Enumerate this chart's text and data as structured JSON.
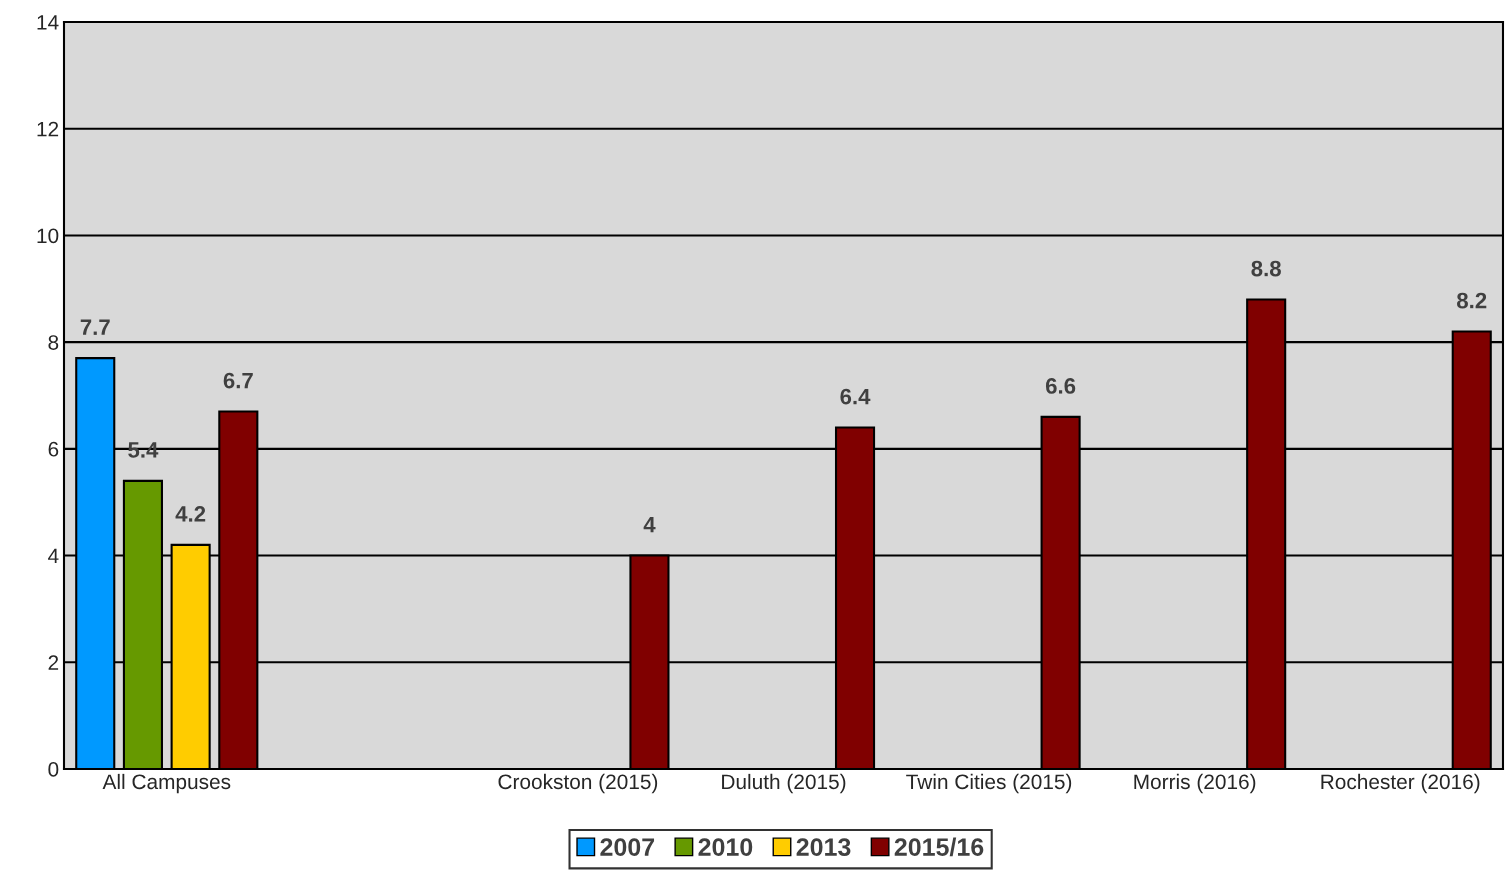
{
  "chart_data": {
    "type": "bar",
    "categories": [
      "All Campuses",
      null,
      "Crookston (2015)",
      "Duluth (2015)",
      "Twin Cities (2015)",
      "Morris (2016)",
      "Rochester (2016)"
    ],
    "series": [
      {
        "name": "2007",
        "color": "#0099ff",
        "values": [
          7.7,
          null,
          null,
          null,
          null,
          null,
          null
        ]
      },
      {
        "name": "2010",
        "color": "#669900",
        "values": [
          5.4,
          null,
          null,
          null,
          null,
          null,
          null
        ]
      },
      {
        "name": "2013",
        "color": "#ffcc00",
        "values": [
          4.2,
          null,
          null,
          null,
          null,
          null,
          null
        ]
      },
      {
        "name": "2015/16",
        "color": "#800000",
        "values": [
          6.7,
          null,
          4,
          6.4,
          6.6,
          8.8,
          8.2
        ]
      }
    ],
    "ylim": [
      0,
      14
    ],
    "yticks": [
      0,
      2,
      4,
      6,
      8,
      10,
      12,
      14
    ],
    "grid": "y",
    "legend": "bottom",
    "data_labels": true
  }
}
